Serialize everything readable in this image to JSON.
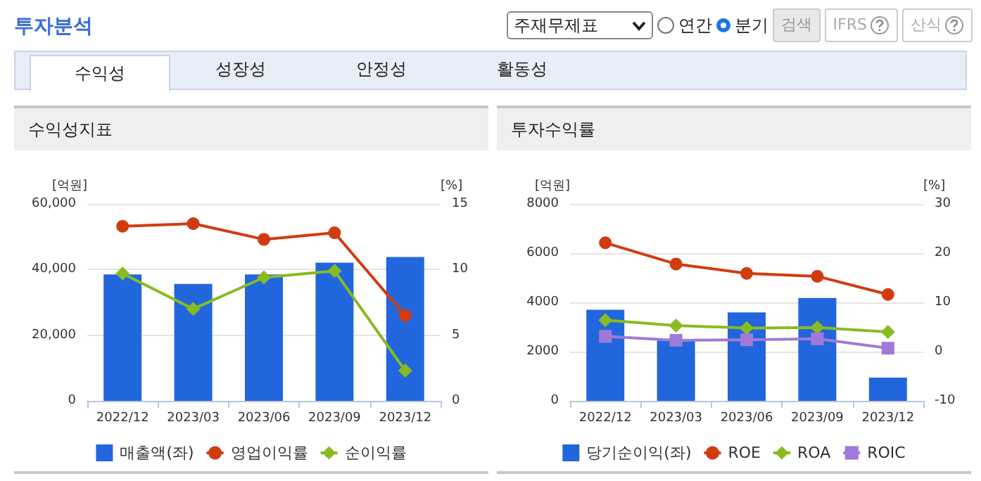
{
  "chart_data": [
    {
      "type": "other",
      "title": "투자분석",
      "annotations": [
        "주재무제표",
        "연간",
        "분기",
        "검색",
        "IFRS",
        "산식",
        "수익성",
        "성장성",
        "안정성",
        "활동성"
      ]
    },
    {
      "type": "bar",
      "title": "수익성지표",
      "ylabel": "[억원]",
      "y2label": "[%]",
      "categories": [
        "2022/12",
        "2023/03",
        "2023/06",
        "2023/09",
        "2023/12"
      ],
      "series": [
        {
          "name": "매출액(좌)",
          "type": "bar",
          "color": "#2266dd",
          "values": [
            38500,
            35600,
            38500,
            42100,
            43800
          ]
        },
        {
          "name": "영업이익률",
          "type": "line",
          "axis": "y2",
          "marker": "circle",
          "color": "#d03c10",
          "values": [
            13.3,
            13.5,
            12.3,
            12.8,
            6.5
          ]
        },
        {
          "name": "순이익률",
          "type": "line",
          "axis": "y2",
          "marker": "diamond",
          "color": "#88bb22",
          "values": [
            9.7,
            7.0,
            9.4,
            9.9,
            2.3
          ]
        }
      ],
      "ylim": [
        0,
        60000
      ],
      "yticks": [
        0,
        {
          "value": 20000,
          "label": "20,000"
        },
        {
          "value": 40000,
          "label": "40,000"
        },
        {
          "value": 60000,
          "label": "60,000"
        }
      ],
      "y2lim": [
        0,
        15
      ],
      "y2ticks": [
        0,
        5,
        10,
        15
      ],
      "grid": "y",
      "legend": "bottom"
    },
    {
      "type": "bar",
      "title": "투자수익률",
      "ylabel": "[억원]",
      "y2label": "[%]",
      "categories": [
        "2022/12",
        "2023/03",
        "2023/06",
        "2023/09",
        "2023/12"
      ],
      "series": [
        {
          "name": "당기순이익(좌)",
          "type": "bar",
          "color": "#2266dd",
          "values": [
            3700,
            2450,
            3590,
            4180,
            940
          ]
        },
        {
          "name": "ROE",
          "type": "line",
          "axis": "y2",
          "marker": "circle",
          "color": "#d03c10",
          "values": [
            22.1,
            17.8,
            15.9,
            15.3,
            11.6
          ]
        },
        {
          "name": "ROA",
          "type": "line",
          "axis": "y2",
          "marker": "diamond",
          "color": "#88bb22",
          "values": [
            6.4,
            5.3,
            4.8,
            4.9,
            4.0
          ]
        },
        {
          "name": "ROIC",
          "type": "line",
          "axis": "y2",
          "marker": "square",
          "color": "#a07ad8",
          "values": [
            3.1,
            2.3,
            2.4,
            2.6,
            0.7
          ]
        }
      ],
      "ylim": [
        0,
        8000
      ],
      "yticks": [
        0,
        2000,
        4000,
        6000,
        8000
      ],
      "y2lim": [
        -10,
        30
      ],
      "y2ticks": [
        -10,
        0,
        10,
        20,
        30
      ],
      "grid": "y",
      "legend": "bottom"
    }
  ]
}
